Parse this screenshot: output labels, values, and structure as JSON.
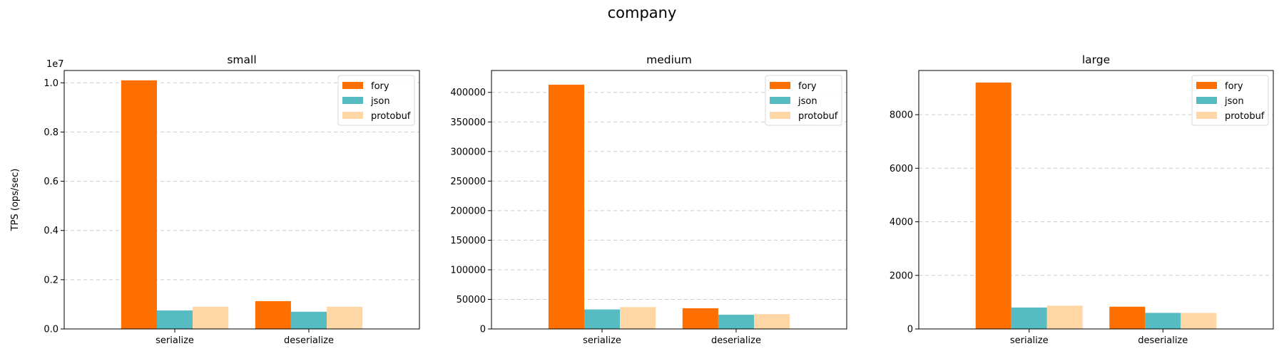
{
  "figure": {
    "title": "company"
  },
  "colors": {
    "fory": "#ff6f00",
    "json": "#57bcc1",
    "protobuf": "#ffd7a6",
    "grid": "#cccccc"
  },
  "chart_data": [
    {
      "type": "bar",
      "title": "small",
      "ylabel": "TPS (ops/sec)",
      "scale_label": "1e7",
      "categories": [
        "serialize",
        "deserialize"
      ],
      "ylim": [
        0,
        10500000
      ],
      "yticks": [
        0,
        2000000,
        4000000,
        6000000,
        8000000,
        10000000
      ],
      "ytick_labels": [
        "0.0",
        "0.2",
        "0.4",
        "0.6",
        "0.8",
        "1.0"
      ],
      "legend": "top-right",
      "grid": "y dashed",
      "series": [
        {
          "name": "fory",
          "values": [
            10100000,
            1130000
          ]
        },
        {
          "name": "json",
          "values": [
            750000,
            700000
          ]
        },
        {
          "name": "protobuf",
          "values": [
            900000,
            900000
          ]
        }
      ]
    },
    {
      "type": "bar",
      "title": "medium",
      "ylabel": "",
      "scale_label": "",
      "categories": [
        "serialize",
        "deserialize"
      ],
      "ylim": [
        0,
        437000
      ],
      "yticks": [
        0,
        50000,
        100000,
        150000,
        200000,
        250000,
        300000,
        350000,
        400000
      ],
      "ytick_labels": [
        "0",
        "50000",
        "100000",
        "150000",
        "200000",
        "250000",
        "300000",
        "350000",
        "400000"
      ],
      "legend": "top-right",
      "grid": "y dashed",
      "series": [
        {
          "name": "fory",
          "values": [
            413000,
            35000
          ]
        },
        {
          "name": "json",
          "values": [
            33000,
            24000
          ]
        },
        {
          "name": "protobuf",
          "values": [
            37000,
            25000
          ]
        }
      ]
    },
    {
      "type": "bar",
      "title": "large",
      "ylabel": "",
      "scale_label": "",
      "categories": [
        "serialize",
        "deserialize"
      ],
      "ylim": [
        0,
        9650
      ],
      "yticks": [
        0,
        2000,
        4000,
        6000,
        8000
      ],
      "ytick_labels": [
        "0",
        "2000",
        "4000",
        "6000",
        "8000"
      ],
      "legend": "top-right",
      "grid": "y dashed",
      "series": [
        {
          "name": "fory",
          "values": [
            9200,
            830
          ]
        },
        {
          "name": "json",
          "values": [
            800,
            600
          ]
        },
        {
          "name": "protobuf",
          "values": [
            870,
            600
          ]
        }
      ]
    }
  ]
}
